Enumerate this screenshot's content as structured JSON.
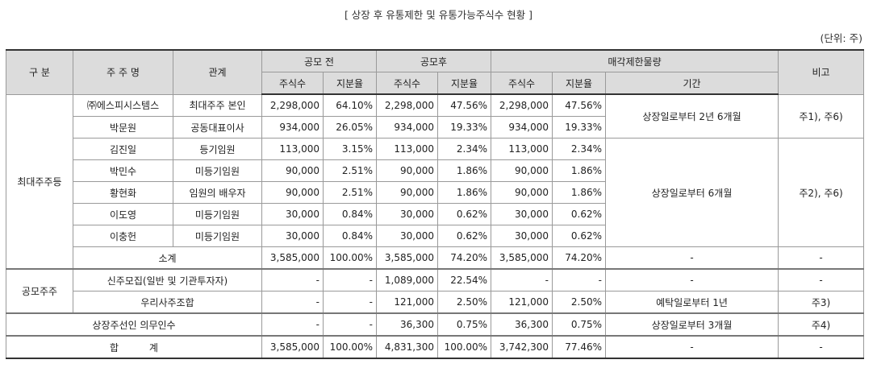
{
  "title": "[ 상장 후 유통제한 및 유통가능주식수 현황 ]",
  "unit": "(단위: 주)",
  "header": {
    "group": "구 분",
    "holder": "주 주 명",
    "relation": "관계",
    "before": "공모 전",
    "after": "공모후",
    "restricted": "매각제한물량",
    "note": "비고",
    "shares": "주식수",
    "ratio": "지분율",
    "period": "기간"
  },
  "group_labels": {
    "major": "최대주주등",
    "ipo": "공모주주"
  },
  "rows": [
    {
      "holder": "㈜에스피시스템스",
      "relation": "최대주주 본인",
      "b_shares": "2,298,000",
      "b_ratio": "64.10%",
      "a_shares": "2,298,000",
      "a_ratio": "47.56%",
      "r_shares": "2,298,000",
      "r_ratio": "47.56%"
    },
    {
      "holder": "박문원",
      "relation": "공동대표이사",
      "b_shares": "934,000",
      "b_ratio": "26.05%",
      "a_shares": "934,000",
      "a_ratio": "19.33%",
      "r_shares": "934,000",
      "r_ratio": "19.33%"
    },
    {
      "holder": "김진일",
      "relation": "등기임원",
      "b_shares": "113,000",
      "b_ratio": "3.15%",
      "a_shares": "113,000",
      "a_ratio": "2.34%",
      "r_shares": "113,000",
      "r_ratio": "2.34%"
    },
    {
      "holder": "박민수",
      "relation": "미등기임원",
      "b_shares": "90,000",
      "b_ratio": "2.51%",
      "a_shares": "90,000",
      "a_ratio": "1.86%",
      "r_shares": "90,000",
      "r_ratio": "1.86%"
    },
    {
      "holder": "황현화",
      "relation": "임원의 배우자",
      "b_shares": "90,000",
      "b_ratio": "2.51%",
      "a_shares": "90,000",
      "a_ratio": "1.86%",
      "r_shares": "90,000",
      "r_ratio": "1.86%"
    },
    {
      "holder": "이도영",
      "relation": "미등기임원",
      "b_shares": "30,000",
      "b_ratio": "0.84%",
      "a_shares": "30,000",
      "a_ratio": "0.62%",
      "r_shares": "30,000",
      "r_ratio": "0.62%"
    },
    {
      "holder": "이충헌",
      "relation": "미등기임원",
      "b_shares": "30,000",
      "b_ratio": "0.84%",
      "a_shares": "30,000",
      "a_ratio": "0.62%",
      "r_shares": "30,000",
      "r_ratio": "0.62%"
    }
  ],
  "period_groups": [
    {
      "period": "상장일로부터 2년 6개월",
      "note": "주1), 주6)"
    },
    {
      "period": "상장일로부터 6개월",
      "note": "주2), 주6)"
    }
  ],
  "subtotal": {
    "label": "소계",
    "b_shares": "3,585,000",
    "b_ratio": "100.00%",
    "a_shares": "3,585,000",
    "a_ratio": "74.20%",
    "r_shares": "3,585,000",
    "r_ratio": "74.20%",
    "period": "-",
    "note": "-"
  },
  "ipo_rows": [
    {
      "label": "신주모집(일반 및 기관투자자)",
      "b_shares": "-",
      "b_ratio": "-",
      "a_shares": "1,089,000",
      "a_ratio": "22.54%",
      "r_shares": "-",
      "r_ratio": "-",
      "period": "-",
      "note": "-"
    },
    {
      "label": "우리사주조합",
      "b_shares": "-",
      "b_ratio": "-",
      "a_shares": "121,000",
      "a_ratio": "2.50%",
      "r_shares": "121,000",
      "r_ratio": "2.50%",
      "period": "예탁일로부터 1년",
      "note": "주3)"
    }
  ],
  "underwriter": {
    "label": "상장주선인 의무인수",
    "b_shares": "-",
    "b_ratio": "-",
    "a_shares": "36,300",
    "a_ratio": "0.75%",
    "r_shares": "36,300",
    "r_ratio": "0.75%",
    "period": "상장일로부터 3개월",
    "note": "주4)"
  },
  "total": {
    "label": "합 계",
    "b_shares": "3,585,000",
    "b_ratio": "100.00%",
    "a_shares": "4,831,300",
    "a_ratio": "100.00%",
    "r_shares": "3,742,300",
    "r_ratio": "77.46%",
    "period": "-",
    "note": "-"
  }
}
